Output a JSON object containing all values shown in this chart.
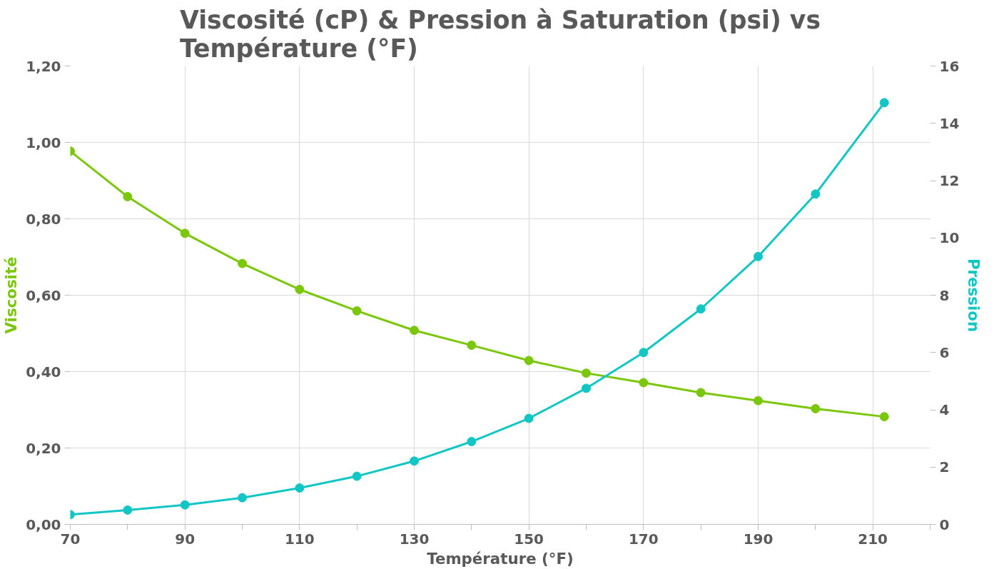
{
  "chart_data": {
    "type": "line",
    "title": "Viscosité (cP) & Pression à Saturation (psi) vs Température (°F)",
    "xlabel": "Température (°F)",
    "ylabel": "Viscosité",
    "y2label": "Pression",
    "x": [
      70,
      80,
      90,
      100,
      110,
      120,
      130,
      140,
      150,
      160,
      170,
      180,
      190,
      200,
      212
    ],
    "series": [
      {
        "color": "#7ac70c",
        "values": [
          0.977,
          0.858,
          0.762,
          0.683,
          0.615,
          0.559,
          0.508,
          0.469,
          0.429,
          0.396,
          0.371,
          0.345,
          0.324,
          0.303,
          0.282
        ]
      },
      {
        "color": "#13c6c6",
        "axis": "y2",
        "values": [
          0.34,
          0.5,
          0.68,
          0.93,
          1.27,
          1.68,
          2.21,
          2.89,
          3.7,
          4.75,
          6.0,
          7.52,
          9.35,
          11.53,
          14.72
        ]
      }
    ],
    "xlim": [
      70,
      220
    ],
    "xticks": [
      70,
      90,
      110,
      130,
      150,
      170,
      190,
      210
    ],
    "ylim": [
      0,
      1.2
    ],
    "yticks": [
      {
        "value": 0,
        "label": "0,00"
      },
      {
        "value": 0.2,
        "label": "0,20"
      },
      {
        "value": 0.4,
        "label": "0,40"
      },
      {
        "value": 0.6,
        "label": "0,60"
      },
      {
        "value": 0.8,
        "label": "0,80"
      },
      {
        "value": 1.0,
        "label": "1,00"
      },
      {
        "value": 1.2,
        "label": "1,20"
      }
    ],
    "y2lim": [
      0,
      16
    ],
    "y2ticks": [
      0,
      2,
      4,
      6,
      8,
      10,
      12,
      14,
      16
    ],
    "grid": true,
    "marker": "circle",
    "line_style": "solid"
  }
}
